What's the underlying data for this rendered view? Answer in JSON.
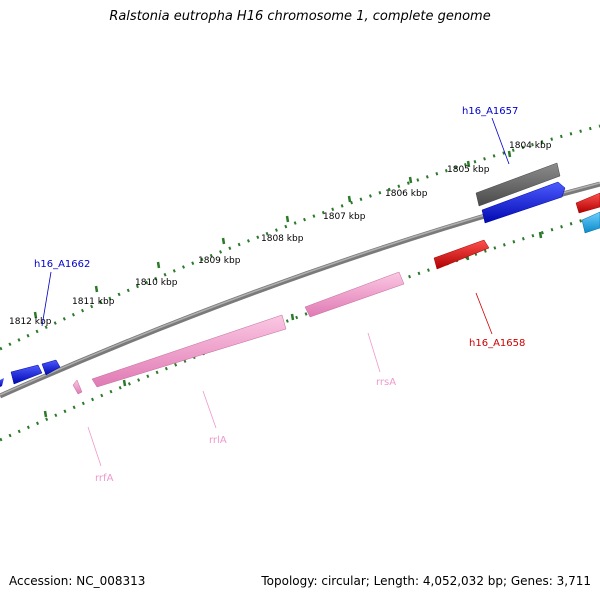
{
  "title": "Ralstonia eutropha H16 chromosome 1, complete genome",
  "accession": "Accession: NC_008313",
  "summary": "Topology: circular; Length: 4,052,032 bp; Genes: 3,711",
  "scale": {
    "ticks": [
      {
        "label": "1804 kbp"
      },
      {
        "label": "1805 kbp"
      },
      {
        "label": "1806 kbp"
      },
      {
        "label": "1807 kbp"
      },
      {
        "label": "1808 kbp"
      },
      {
        "label": "1809 kbp"
      },
      {
        "label": "1810 kbp"
      },
      {
        "label": "1811 kbp"
      },
      {
        "label": "1812 kbp"
      }
    ]
  },
  "features": {
    "h16_A1657": {
      "label": "h16_A1657",
      "color": "#0000cc"
    },
    "h16_A1662": {
      "label": "h16_A1662",
      "color": "#0000cc"
    },
    "h16_A1658": {
      "label": "h16_A1658",
      "color": "#cc0000"
    },
    "rrsA": {
      "label": "rrsA",
      "color": "#ee99cc"
    },
    "rrlA": {
      "label": "rrlA",
      "color": "#ee99cc"
    },
    "rrfA": {
      "label": "rrfA",
      "color": "#ee99cc"
    }
  },
  "colors": {
    "backbone": "#7a7a7a",
    "tick": "#2a7a2a",
    "blue_gene": "#0a14e6",
    "gray_gene": "#666666",
    "red_gene": "#ee0000",
    "cyan_gene": "#1aa8e6",
    "pink_rna": "#f4a6cf"
  }
}
